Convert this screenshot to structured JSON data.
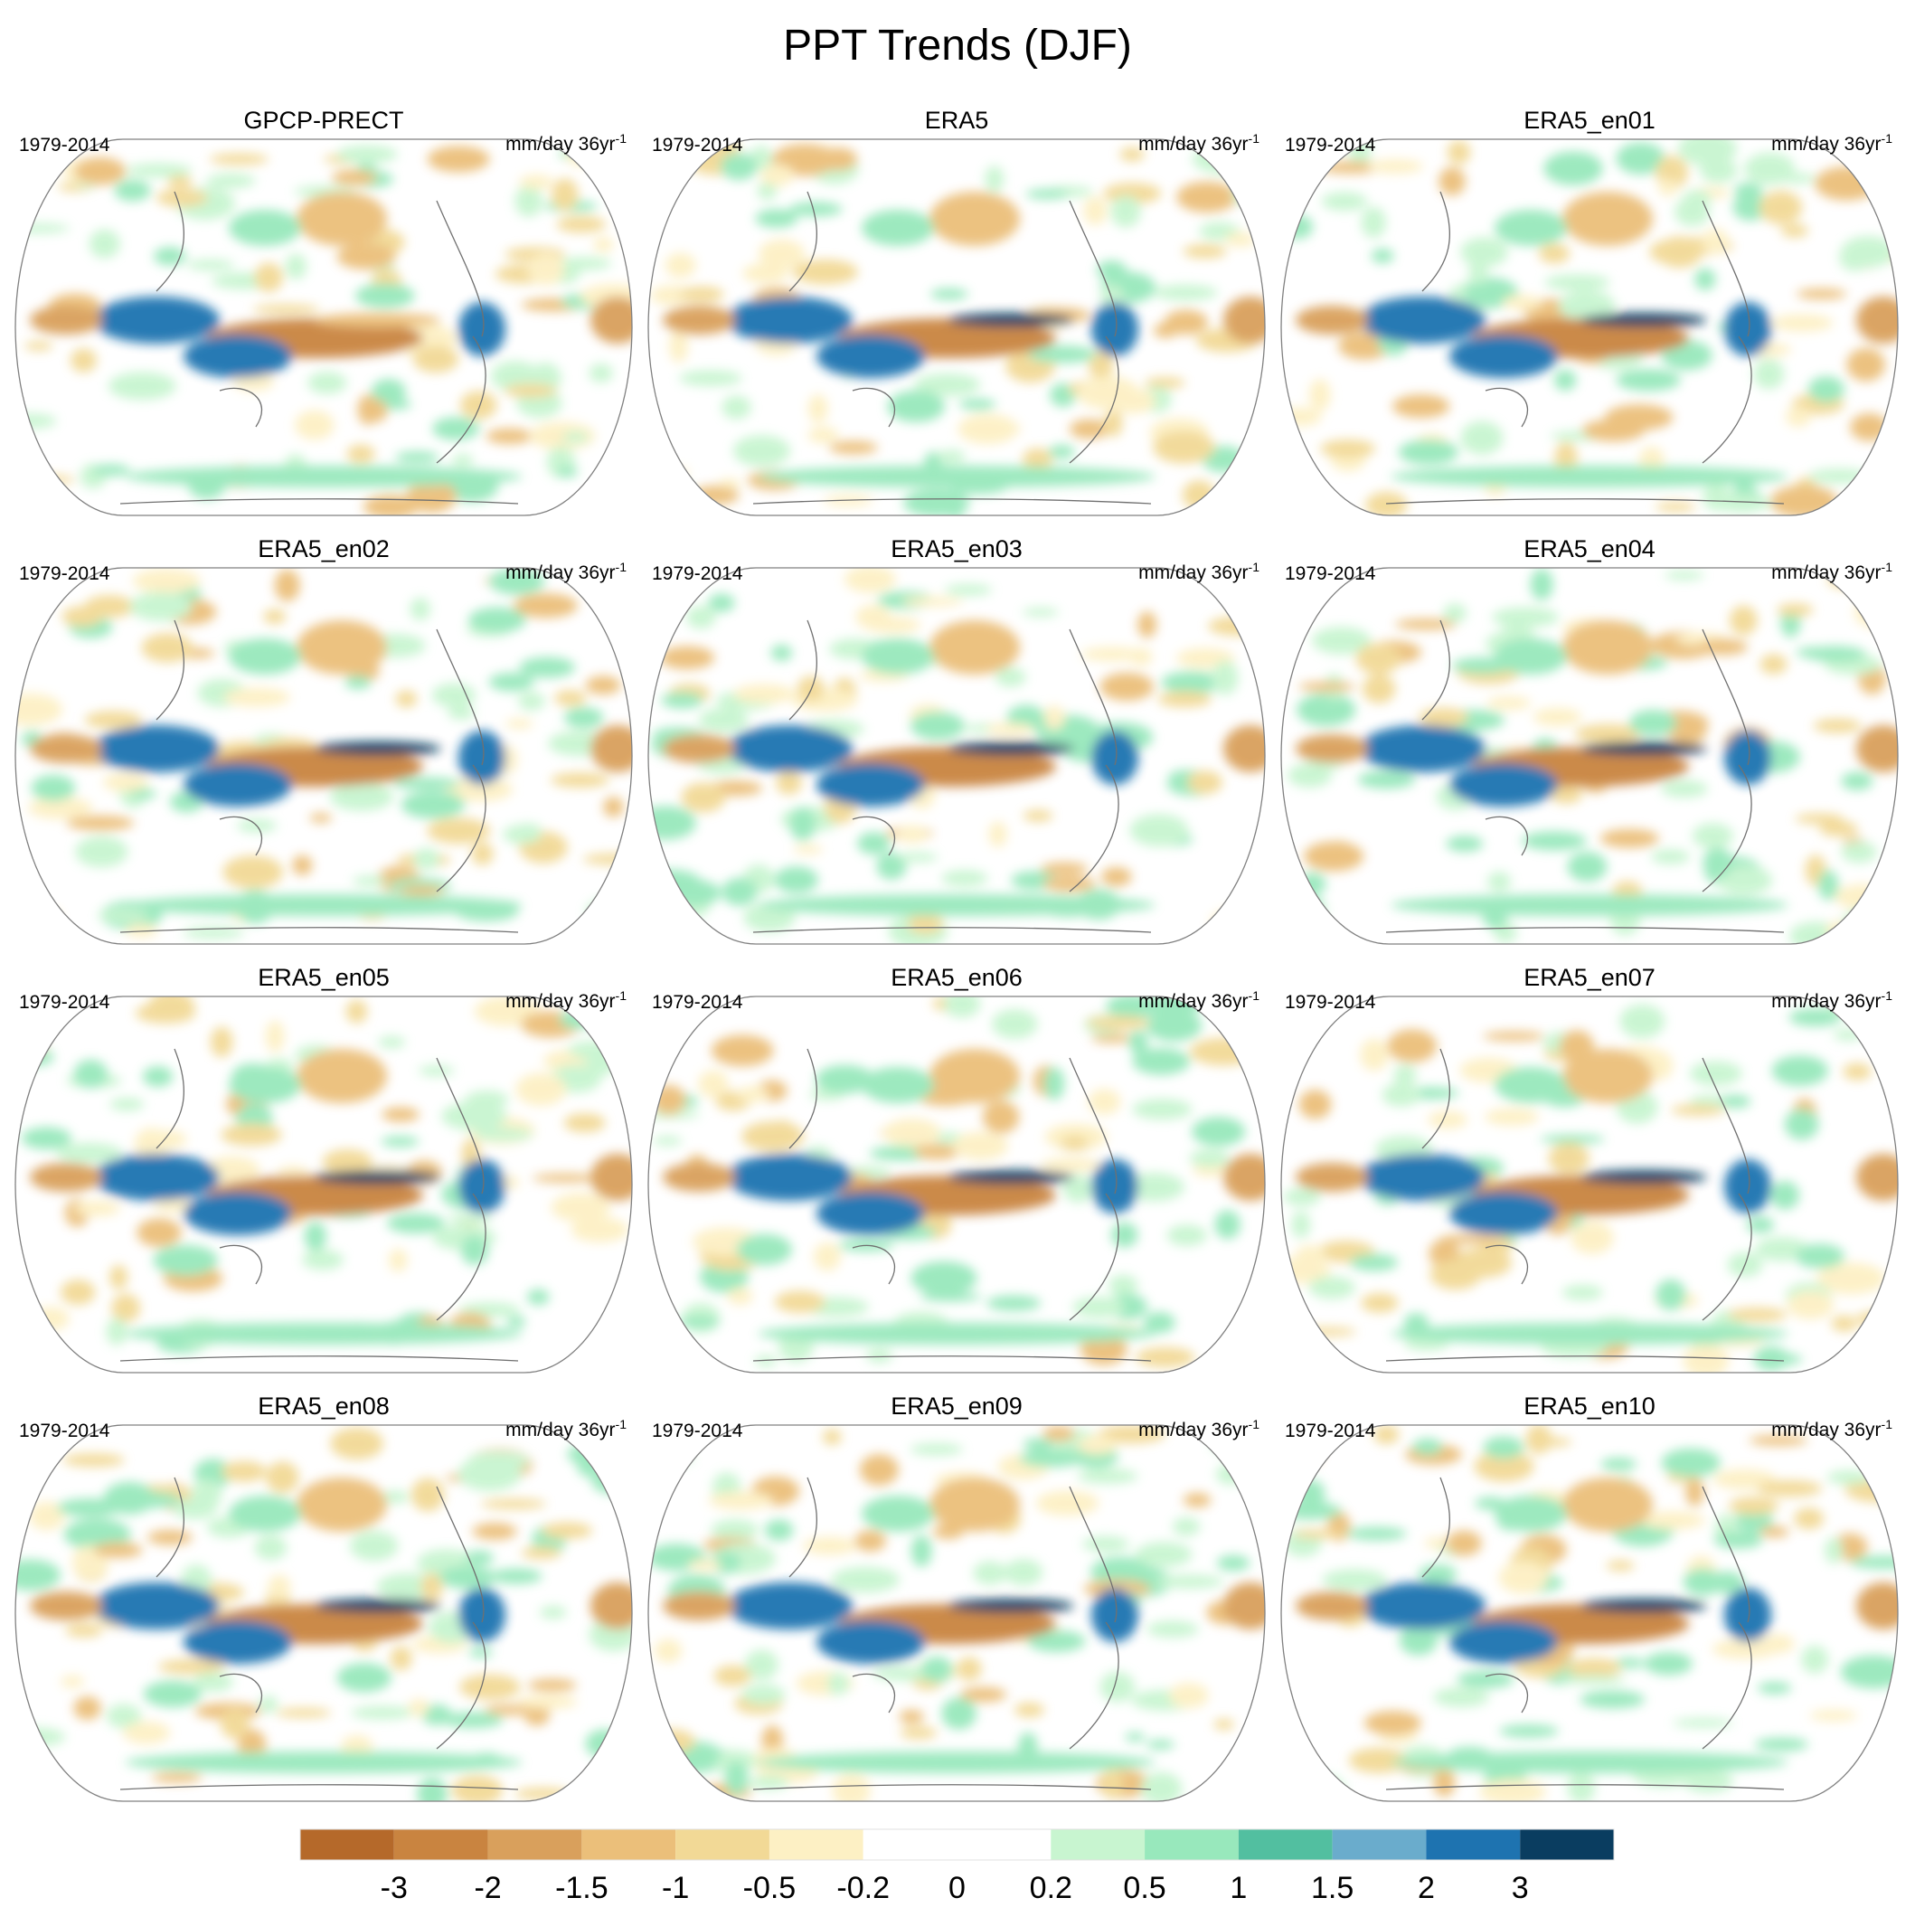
{
  "title": "PPT Trends (DJF)",
  "chart_data": {
    "type": "heatmap",
    "projection": "robinson-like global map grid (3 x 4 panels)",
    "title": "PPT Trends (DJF)",
    "period_label": "1979-2014",
    "units_label": "mm/day 36yr",
    "units_superscript": "-1",
    "panels": [
      {
        "name": "GPCP-PRECT"
      },
      {
        "name": "ERA5"
      },
      {
        "name": "ERA5_en01"
      },
      {
        "name": "ERA5_en02"
      },
      {
        "name": "ERA5_en03"
      },
      {
        "name": "ERA5_en04"
      },
      {
        "name": "ERA5_en05"
      },
      {
        "name": "ERA5_en06"
      },
      {
        "name": "ERA5_en07"
      },
      {
        "name": "ERA5_en08"
      },
      {
        "name": "ERA5_en09"
      },
      {
        "name": "ERA5_en10"
      }
    ],
    "colorbar": {
      "levels": [
        "-3",
        "-2",
        "-1.5",
        "-1",
        "-0.5",
        "-0.2",
        "0",
        "0.2",
        "0.5",
        "1",
        "1.5",
        "2",
        "3"
      ],
      "colors": [
        "#b5692a",
        "#c98440",
        "#d9a05c",
        "#ebbf7a",
        "#f2d996",
        "#fdf0c4",
        "#ffffff",
        "#ffffff",
        "#c8f5d0",
        "#98e8bc",
        "#52bfa0",
        "#6aaccc",
        "#1e73b0",
        "#0a3d60"
      ]
    }
  }
}
